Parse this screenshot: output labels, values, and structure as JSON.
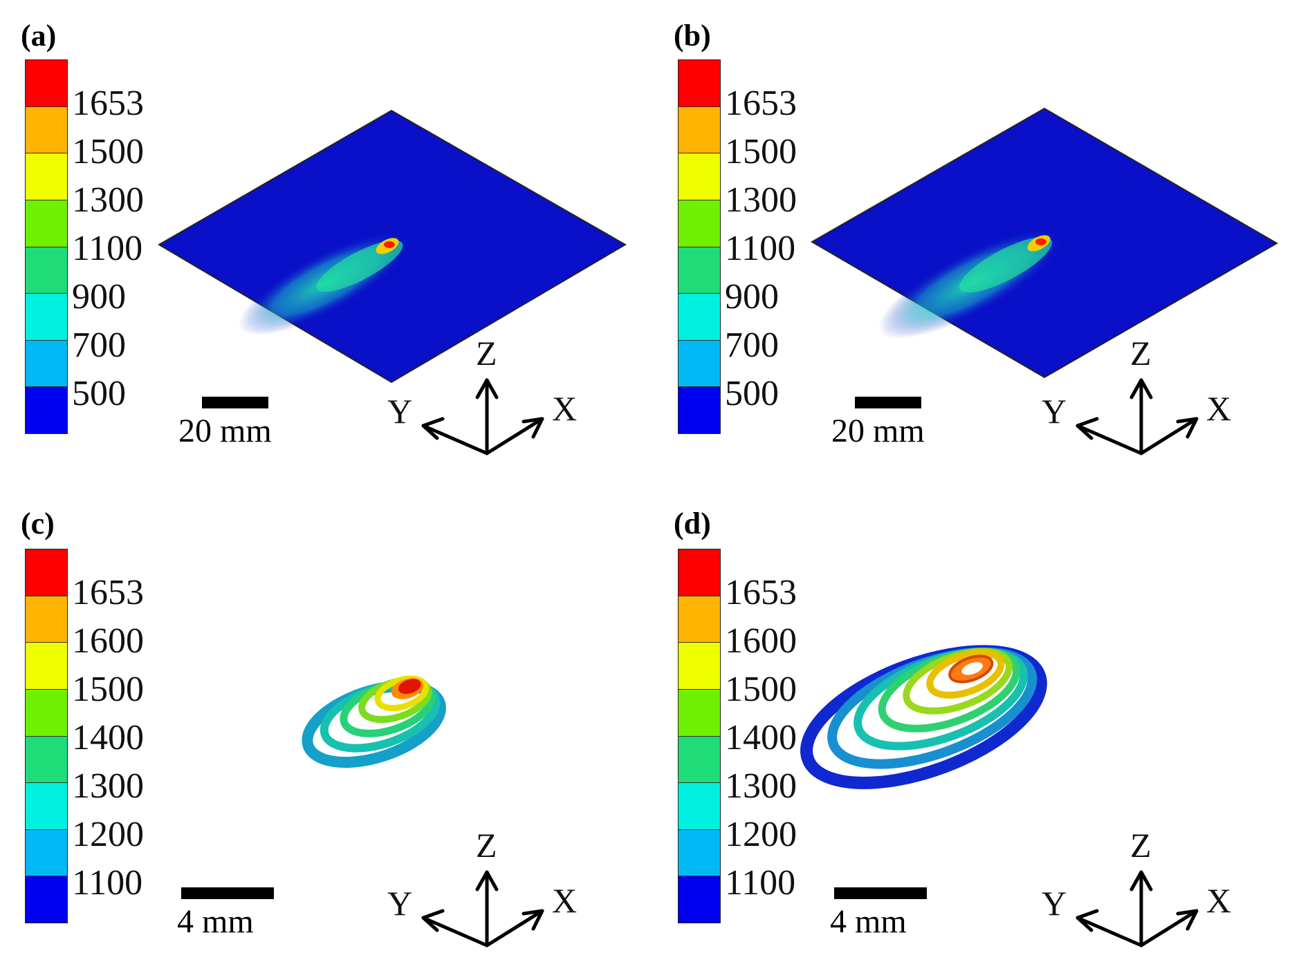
{
  "colors": {
    "bands": [
      "#ff0000",
      "#ffb400",
      "#f0ff00",
      "#6ef000",
      "#1edc78",
      "#00f0e0",
      "#00b8f4",
      "#0000f0"
    ],
    "plate": "#0a10c8"
  },
  "panels": [
    {
      "id": "a",
      "label": "(a)",
      "colorbar_labels": [
        "1653",
        "1500",
        "1300",
        "1100",
        "900",
        "700",
        "500"
      ],
      "scale_label": "20 mm",
      "axes": {
        "x": "X",
        "y": "Y",
        "z": "Z"
      },
      "scene": "plate"
    },
    {
      "id": "b",
      "label": "(b)",
      "colorbar_labels": [
        "1653",
        "1500",
        "1300",
        "1100",
        "900",
        "700",
        "500"
      ],
      "scale_label": "20 mm",
      "axes": {
        "x": "X",
        "y": "Y",
        "z": "Z"
      },
      "scene": "plate"
    },
    {
      "id": "c",
      "label": "(c)",
      "colorbar_labels": [
        "1653",
        "1600",
        "1500",
        "1400",
        "1300",
        "1200",
        "1100"
      ],
      "scale_label": "4 mm",
      "axes": {
        "x": "X",
        "y": "Y",
        "z": "Z"
      },
      "scene": "pool-small"
    },
    {
      "id": "d",
      "label": "(d)",
      "colorbar_labels": [
        "1653",
        "1600",
        "1500",
        "1400",
        "1300",
        "1200",
        "1100"
      ],
      "scale_label": "4 mm",
      "axes": {
        "x": "X",
        "y": "Y",
        "z": "Z"
      },
      "scene": "pool-large"
    }
  ]
}
